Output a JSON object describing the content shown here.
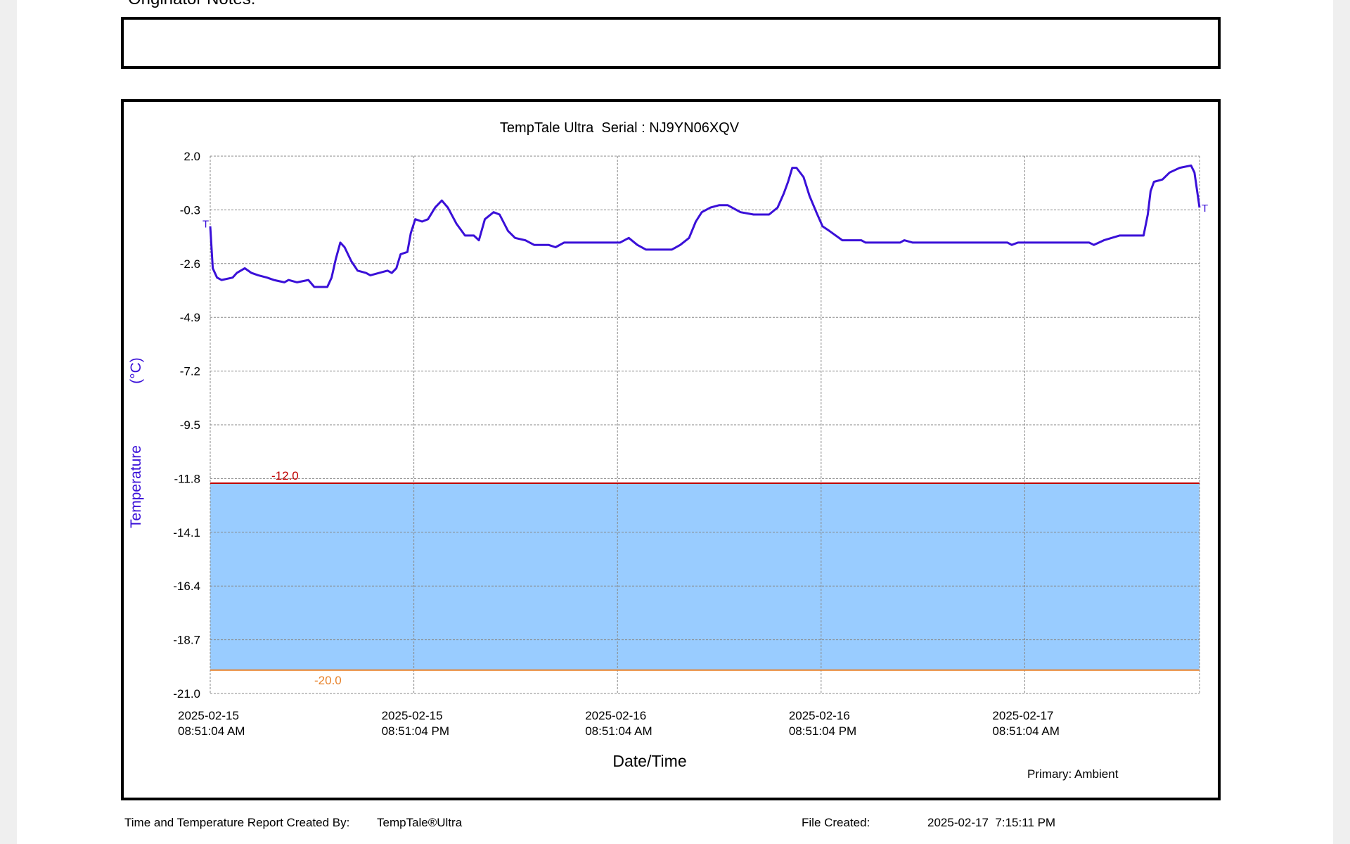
{
  "originator_notes_label": "Originator Notes:",
  "chart_data": {
    "type": "line",
    "title": "TempTale Ultra  Serial : NJ9YN06XQV",
    "x_label": "Date/Time",
    "y_label": "Temperature",
    "y_unit": "(°C)",
    "primary_label": "Primary: Ambient",
    "trip_markers": [
      "T",
      "T"
    ],
    "grid": true,
    "ylim": [
      -21,
      2
    ],
    "yticks": [
      {
        "value": 2,
        "label": "2.0"
      },
      -0.3,
      -2.6,
      -4.9,
      -7.2,
      -9.5,
      -11.8,
      -14.1,
      -16.4,
      -18.7,
      {
        "value": -21,
        "label": "-21.0"
      }
    ],
    "xlim": [
      "2025-02-15T08:51:04",
      "2025-02-17T19:09:04"
    ],
    "xticks": [
      {
        "value": "2025-02-15T08:51:04",
        "label": [
          "2025-02-15",
          "08:51:04 AM"
        ]
      },
      {
        "value": "2025-02-15T20:51:04",
        "label": [
          "2025-02-15",
          "08:51:04 PM"
        ]
      },
      {
        "value": "2025-02-16T08:51:04",
        "label": [
          "2025-02-16",
          "08:51:04 AM"
        ]
      },
      {
        "value": "2025-02-16T20:51:04",
        "label": [
          "2025-02-16",
          "08:51:04 PM"
        ]
      },
      {
        "value": "2025-02-17T08:51:04",
        "label": [
          "2025-02-17",
          "08:51:04 AM"
        ]
      }
    ],
    "limits": [
      {
        "value": -12,
        "label": "-12.0",
        "color": "#c00000"
      },
      {
        "value": -20,
        "label": "-20.0",
        "color": "#e8822a"
      }
    ],
    "band_color": "#99ccff",
    "series": [
      {
        "name": "Ambient",
        "color": "#3a10d8",
        "x": [
          "2025-02-15T08:51:04",
          "2025-02-15T09:00:04",
          "2025-02-15T09:15:04",
          "2025-02-15T09:31:04",
          "2025-02-15T10:10:04",
          "2025-02-15T10:25:04",
          "2025-02-15T10:53:04",
          "2025-02-15T11:17:04",
          "2025-02-15T11:41:04",
          "2025-02-15T12:12:04",
          "2025-02-15T12:36:04",
          "2025-02-15T13:13:04",
          "2025-02-15T13:28:04",
          "2025-02-15T13:58:04",
          "2025-02-15T14:38:04",
          "2025-02-15T14:59:04",
          "2025-02-15T15:45:04",
          "2025-02-15T16:00:04",
          "2025-02-15T16:15:04",
          "2025-02-15T16:31:04",
          "2025-02-15T16:46:04",
          "2025-02-15T17:10:04",
          "2025-02-15T17:32:04",
          "2025-02-15T18:02:04",
          "2025-02-15T18:17:04",
          "2025-02-15T18:48:04",
          "2025-02-15T19:18:04",
          "2025-02-15T19:33:04",
          "2025-02-15T19:49:04",
          "2025-02-15T20:04:04",
          "2025-02-15T20:28:04",
          "2025-02-15T20:40:04",
          "2025-02-15T20:56:04",
          "2025-02-15T21:20:04",
          "2025-02-15T21:41:04",
          "2025-02-15T22:06:04",
          "2025-02-15T22:30:04",
          "2025-02-15T22:51:04",
          "2025-02-15T23:22:04",
          "2025-02-15T23:52:04",
          "2025-02-16T00:23:04",
          "2025-02-16T00:41:04",
          "2025-02-16T01:02:04",
          "2025-02-16T01:33:04",
          "2025-02-16T01:54:04",
          "2025-02-16T02:24:04",
          "2025-02-16T02:49:04",
          "2025-02-16T03:25:04",
          "2025-02-16T03:56:04",
          "2025-02-16T04:47:04",
          "2025-02-16T05:12:04",
          "2025-02-16T05:42:04",
          "2025-02-16T09:00:04",
          "2025-02-16T09:31:04",
          "2025-02-16T10:01:04",
          "2025-02-16T10:32:04",
          "2025-02-16T12:03:04",
          "2025-02-16T12:33:04",
          "2025-02-16T13:04:04",
          "2025-02-16T13:28:04",
          "2025-02-16T13:49:04",
          "2025-02-16T14:20:04",
          "2025-02-16T14:50:04",
          "2025-02-16T15:21:04",
          "2025-02-16T16:06:04",
          "2025-02-16T16:52:04",
          "2025-02-16T17:47:04",
          "2025-02-16T18:17:04",
          "2025-02-16T18:39:04",
          "2025-02-16T18:54:04",
          "2025-02-16T19:09:04",
          "2025-02-16T19:24:04",
          "2025-02-16T19:49:04",
          "2025-02-16T20:10:04",
          "2025-02-16T20:34:04",
          "2025-02-16T20:56:04",
          "2025-02-16T21:20:04",
          "2025-02-16T22:06:04",
          "2025-02-16T23:13:04",
          "2025-02-16T23:28:04",
          "2025-02-17T01:30:04",
          "2025-02-17T01:45:04",
          "2025-02-17T02:15:04",
          "2025-02-17T07:50:04",
          "2025-02-17T08:05:04",
          "2025-02-17T08:27:04",
          "2025-02-17T12:39:04",
          "2025-02-17T12:55:04",
          "2025-02-17T13:31:04",
          "2025-02-17T14:26:04",
          "2025-02-17T15:51:04",
          "2025-02-17T16:06:04",
          "2025-02-17T16:16:04",
          "2025-02-17T16:28:04",
          "2025-02-17T16:58:04",
          "2025-02-17T17:23:04",
          "2025-02-17T17:59:04",
          "2025-02-17T18:39:04",
          "2025-02-17T18:51:04",
          "2025-02-17T19:09:04"
        ],
        "values": [
          -1.0,
          -2.8,
          -3.2,
          -3.3,
          -3.2,
          -3.0,
          -2.8,
          -3.0,
          -3.1,
          -3.2,
          -3.3,
          -3.4,
          -3.3,
          -3.4,
          -3.3,
          -3.6,
          -3.6,
          -3.2,
          -2.4,
          -1.7,
          -1.9,
          -2.5,
          -2.9,
          -3.0,
          -3.1,
          -3.0,
          -2.9,
          -3.0,
          -2.8,
          -2.2,
          -2.1,
          -1.3,
          -0.7,
          -0.8,
          -0.7,
          -0.2,
          0.1,
          -0.2,
          -0.9,
          -1.4,
          -1.4,
          -1.6,
          -0.7,
          -0.4,
          -0.5,
          -1.2,
          -1.5,
          -1.6,
          -1.8,
          -1.8,
          -1.9,
          -1.7,
          -1.7,
          -1.5,
          -1.8,
          -2.0,
          -2.0,
          -1.8,
          -1.5,
          -0.8,
          -0.4,
          -0.2,
          -0.1,
          -0.1,
          -0.4,
          -0.5,
          -0.5,
          -0.2,
          0.4,
          0.9,
          1.5,
          1.5,
          1.1,
          0.3,
          -0.4,
          -1.0,
          -1.2,
          -1.6,
          -1.6,
          -1.7,
          -1.7,
          -1.6,
          -1.7,
          -1.7,
          -1.8,
          -1.7,
          -1.7,
          -1.8,
          -1.6,
          -1.4,
          -1.4,
          -0.5,
          0.5,
          0.9,
          1.0,
          1.3,
          1.5,
          1.6,
          1.3,
          -0.2
        ]
      }
    ]
  },
  "footer": {
    "created_by_label": "Time and Temperature Report Created By:",
    "created_by": "TempTale®Ultra",
    "file_created_label": "File Created:",
    "file_created": "2025-02-17  7:15:11 PM"
  }
}
